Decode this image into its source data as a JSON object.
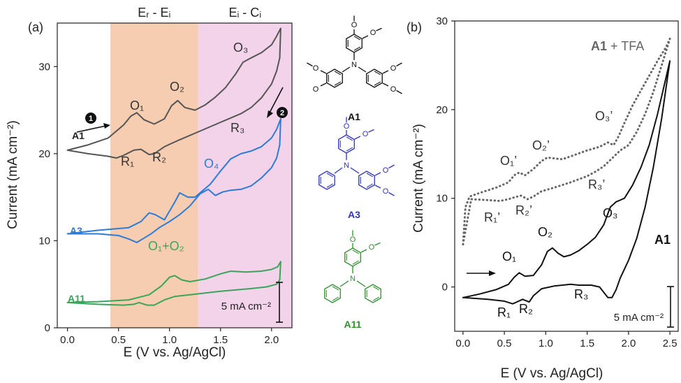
{
  "chart_data": [
    {
      "type": "line",
      "panel_label": "(a)",
      "xlabel": "E (V vs. Ag/AgCl)",
      "ylabel": "Current (mA cm⁻²)",
      "xlim": [
        -0.1,
        2.2
      ],
      "ylim": [
        0,
        35
      ],
      "x_ticks": [
        "0.0",
        "0.5",
        "1.0",
        "1.5",
        "2.0"
      ],
      "y_ticks": [
        "0",
        "10",
        "20",
        "30"
      ],
      "regions": [
        {
          "label": "Eᵣ - Eᵢ",
          "x_start": 0.42,
          "x_end": 1.28,
          "color": "#f6cdb0"
        },
        {
          "label": "Eᵢ - Cᵢ",
          "x_start": 1.28,
          "x_end": 2.2,
          "color": "#f2d3ea"
        }
      ],
      "series": [
        {
          "name": "A1",
          "color": "#555555",
          "forward": [
            [
              0.0,
              20.4
            ],
            [
              0.2,
              21.0
            ],
            [
              0.4,
              21.8
            ],
            [
              0.55,
              23.3
            ],
            [
              0.62,
              24.3
            ],
            [
              0.68,
              24.7
            ],
            [
              0.75,
              23.9
            ],
            [
              0.85,
              23.4
            ],
            [
              0.95,
              24.0
            ],
            [
              1.02,
              25.5
            ],
            [
              1.08,
              26.1
            ],
            [
              1.15,
              25.3
            ],
            [
              1.25,
              25.0
            ],
            [
              1.35,
              25.6
            ],
            [
              1.45,
              26.5
            ],
            [
              1.55,
              27.6
            ],
            [
              1.65,
              29.2
            ],
            [
              1.72,
              30.5
            ],
            [
              1.8,
              31.0
            ],
            [
              1.9,
              31.6
            ],
            [
              2.0,
              32.5
            ],
            [
              2.05,
              33.5
            ],
            [
              2.09,
              34.4
            ]
          ],
          "reverse": [
            [
              2.09,
              34.4
            ],
            [
              2.08,
              31.0
            ],
            [
              2.05,
              29.5
            ],
            [
              2.0,
              28.0
            ],
            [
              1.9,
              26.4
            ],
            [
              1.8,
              25.3
            ],
            [
              1.7,
              24.6
            ],
            [
              1.6,
              24.1
            ],
            [
              1.5,
              23.6
            ],
            [
              1.3,
              22.6
            ],
            [
              1.1,
              21.6
            ],
            [
              0.95,
              20.8
            ],
            [
              0.85,
              20.0
            ],
            [
              0.8,
              19.9
            ],
            [
              0.72,
              20.5
            ],
            [
              0.65,
              20.4
            ],
            [
              0.55,
              19.8
            ],
            [
              0.48,
              19.5
            ],
            [
              0.4,
              19.7
            ],
            [
              0.2,
              20.0
            ],
            [
              0.0,
              20.4
            ]
          ]
        },
        {
          "name": "A3",
          "color": "#2e7bd6",
          "forward": [
            [
              0.0,
              10.8
            ],
            [
              0.3,
              11.2
            ],
            [
              0.6,
              11.5
            ],
            [
              0.72,
              12.2
            ],
            [
              0.8,
              13.2
            ],
            [
              0.86,
              13.0
            ],
            [
              0.95,
              12.4
            ],
            [
              1.05,
              14.4
            ],
            [
              1.1,
              15.5
            ],
            [
              1.18,
              15.0
            ],
            [
              1.25,
              15.0
            ],
            [
              1.33,
              15.8
            ],
            [
              1.4,
              16.5
            ],
            [
              1.5,
              18.0
            ],
            [
              1.6,
              19.4
            ],
            [
              1.7,
              20.0
            ],
            [
              1.8,
              20.3
            ],
            [
              1.9,
              20.8
            ],
            [
              2.0,
              21.8
            ],
            [
              2.05,
              22.8
            ],
            [
              2.09,
              24.0
            ]
          ],
          "reverse": [
            [
              2.09,
              24.0
            ],
            [
              2.08,
              21.0
            ],
            [
              2.05,
              19.5
            ],
            [
              2.0,
              18.4
            ],
            [
              1.9,
              17.2
            ],
            [
              1.8,
              16.3
            ],
            [
              1.7,
              15.9
            ],
            [
              1.6,
              15.8
            ],
            [
              1.52,
              15.6
            ],
            [
              1.45,
              15.2
            ],
            [
              1.38,
              15.9
            ],
            [
              1.3,
              15.4
            ],
            [
              1.2,
              14.0
            ],
            [
              1.1,
              13.0
            ],
            [
              1.0,
              12.2
            ],
            [
              0.9,
              11.5
            ],
            [
              0.82,
              10.8
            ],
            [
              0.75,
              10.3
            ],
            [
              0.68,
              9.8
            ],
            [
              0.6,
              10.2
            ],
            [
              0.5,
              10.6
            ],
            [
              0.3,
              10.8
            ],
            [
              0.0,
              10.8
            ]
          ]
        },
        {
          "name": "A11",
          "color": "#3aa55a",
          "forward": [
            [
              0.0,
              2.9
            ],
            [
              0.3,
              3.0
            ],
            [
              0.6,
              3.2
            ],
            [
              0.8,
              3.8
            ],
            [
              0.92,
              4.8
            ],
            [
              1.0,
              5.8
            ],
            [
              1.05,
              6.0
            ],
            [
              1.12,
              5.5
            ],
            [
              1.2,
              5.3
            ],
            [
              1.35,
              5.6
            ],
            [
              1.5,
              6.2
            ],
            [
              1.6,
              6.5
            ],
            [
              1.75,
              6.4
            ],
            [
              1.9,
              6.5
            ],
            [
              2.0,
              6.7
            ],
            [
              2.06,
              7.0
            ],
            [
              2.09,
              7.6
            ]
          ],
          "reverse": [
            [
              2.09,
              7.6
            ],
            [
              2.08,
              5.5
            ],
            [
              2.05,
              5.0
            ],
            [
              1.95,
              4.7
            ],
            [
              1.8,
              4.5
            ],
            [
              1.5,
              4.2
            ],
            [
              1.2,
              3.8
            ],
            [
              1.05,
              3.6
            ],
            [
              0.95,
              3.2
            ],
            [
              0.85,
              2.6
            ],
            [
              0.78,
              2.6
            ],
            [
              0.7,
              2.9
            ],
            [
              0.65,
              2.7
            ],
            [
              0.55,
              2.6
            ],
            [
              0.3,
              2.7
            ],
            [
              0.0,
              2.9
            ]
          ]
        }
      ],
      "annotations": [
        "O₁",
        "O₂",
        "O₃",
        "O₄",
        "R₁",
        "R₂",
        "R₃",
        "O₁+O₂",
        "1",
        "2"
      ],
      "scale_bar": "5 mA cm⁻²"
    },
    {
      "type": "line",
      "panel_label": "(b)",
      "xlabel": "E (V vs. Ag/AgCl)",
      "ylabel": "Current (mA cm⁻²)",
      "xlim": [
        -0.1,
        2.6
      ],
      "ylim": [
        -5,
        30
      ],
      "x_ticks": [
        "0.0",
        "0.5",
        "1.0",
        "1.5",
        "2.0",
        "2.5"
      ],
      "y_ticks": [
        "0",
        "10",
        "20",
        "30"
      ],
      "series": [
        {
          "name": "A1",
          "color": "#111111",
          "dash": "solid",
          "forward": [
            [
              0.0,
              -1.2
            ],
            [
              0.2,
              -0.8
            ],
            [
              0.4,
              -0.3
            ],
            [
              0.55,
              0.3
            ],
            [
              0.62,
              1.1
            ],
            [
              0.68,
              1.6
            ],
            [
              0.75,
              1.2
            ],
            [
              0.85,
              1.3
            ],
            [
              0.95,
              2.5
            ],
            [
              1.02,
              4.0
            ],
            [
              1.08,
              4.4
            ],
            [
              1.15,
              3.8
            ],
            [
              1.22,
              3.4
            ],
            [
              1.3,
              3.6
            ],
            [
              1.4,
              4.1
            ],
            [
              1.5,
              4.8
            ],
            [
              1.6,
              5.6
            ],
            [
              1.7,
              7.0
            ],
            [
              1.78,
              9.0
            ],
            [
              1.85,
              9.6
            ],
            [
              1.95,
              10.0
            ],
            [
              2.05,
              11.5
            ],
            [
              2.15,
              13.5
            ],
            [
              2.25,
              16.0
            ],
            [
              2.35,
              19.5
            ],
            [
              2.45,
              23.5
            ],
            [
              2.5,
              25.5
            ]
          ],
          "reverse": [
            [
              2.5,
              25.5
            ],
            [
              2.4,
              19.0
            ],
            [
              2.3,
              13.5
            ],
            [
              2.2,
              9.0
            ],
            [
              2.1,
              5.5
            ],
            [
              2.0,
              3.0
            ],
            [
              1.9,
              1.0
            ],
            [
              1.85,
              -0.3
            ],
            [
              1.8,
              -1.2
            ],
            [
              1.75,
              -1.2
            ],
            [
              1.65,
              0.0
            ],
            [
              1.55,
              0.2
            ],
            [
              1.4,
              0.2
            ],
            [
              1.3,
              0.3
            ],
            [
              1.1,
              0.1
            ],
            [
              0.95,
              -0.2
            ],
            [
              0.85,
              -1.0
            ],
            [
              0.8,
              -1.7
            ],
            [
              0.72,
              -1.4
            ],
            [
              0.65,
              -1.7
            ],
            [
              0.6,
              -1.9
            ],
            [
              0.5,
              -1.6
            ],
            [
              0.3,
              -1.4
            ],
            [
              0.0,
              -1.2
            ]
          ]
        },
        {
          "name": "A1 + TFA",
          "color": "#666666",
          "dash": "dotted",
          "forward": [
            [
              0.0,
              4.8
            ],
            [
              0.03,
              9.0
            ],
            [
              0.08,
              10.2
            ],
            [
              0.2,
              10.6
            ],
            [
              0.4,
              11.2
            ],
            [
              0.55,
              11.8
            ],
            [
              0.62,
              12.6
            ],
            [
              0.68,
              12.9
            ],
            [
              0.75,
              12.6
            ],
            [
              0.85,
              13.3
            ],
            [
              0.95,
              14.2
            ],
            [
              1.02,
              14.6
            ],
            [
              1.1,
              14.5
            ],
            [
              1.2,
              14.4
            ],
            [
              1.35,
              14.9
            ],
            [
              1.5,
              15.4
            ],
            [
              1.65,
              15.8
            ],
            [
              1.75,
              16.3
            ],
            [
              1.82,
              16.0
            ],
            [
              1.88,
              17.0
            ],
            [
              1.95,
              18.5
            ],
            [
              2.05,
              20.5
            ],
            [
              2.2,
              23.0
            ],
            [
              2.35,
              25.5
            ],
            [
              2.45,
              27.0
            ],
            [
              2.5,
              28.0
            ]
          ],
          "reverse": [
            [
              2.5,
              28.0
            ],
            [
              2.4,
              25.0
            ],
            [
              2.3,
              22.0
            ],
            [
              2.2,
              19.5
            ],
            [
              2.1,
              17.5
            ],
            [
              2.0,
              16.0
            ],
            [
              1.9,
              15.4
            ],
            [
              1.8,
              14.5
            ],
            [
              1.7,
              13.6
            ],
            [
              1.6,
              13.0
            ],
            [
              1.5,
              12.5
            ],
            [
              1.3,
              11.8
            ],
            [
              1.1,
              11.2
            ],
            [
              0.95,
              10.8
            ],
            [
              0.85,
              10.2
            ],
            [
              0.78,
              9.9
            ],
            [
              0.7,
              10.3
            ],
            [
              0.62,
              10.1
            ],
            [
              0.55,
              9.9
            ],
            [
              0.45,
              9.7
            ],
            [
              0.3,
              9.8
            ],
            [
              0.1,
              9.9
            ],
            [
              0.0,
              4.8
            ]
          ]
        }
      ],
      "annotations": [
        "O₁",
        "O₂",
        "O₃",
        "R₁",
        "R₂",
        "R₃",
        "O₁’",
        "O₂’",
        "O₃’",
        "R₁’",
        "R₂’",
        "R₃’"
      ],
      "legend_text": [
        "A1",
        " + TFA"
      ],
      "scale_bar": "5 mA cm⁻²"
    }
  ],
  "molecules": [
    {
      "name": "A1",
      "color": "#111111"
    },
    {
      "name": "A3",
      "color": "#2f34c2"
    },
    {
      "name": "A11",
      "color": "#2f8f2f"
    }
  ],
  "atom_labels": {
    "O": "O",
    "N": "N"
  }
}
